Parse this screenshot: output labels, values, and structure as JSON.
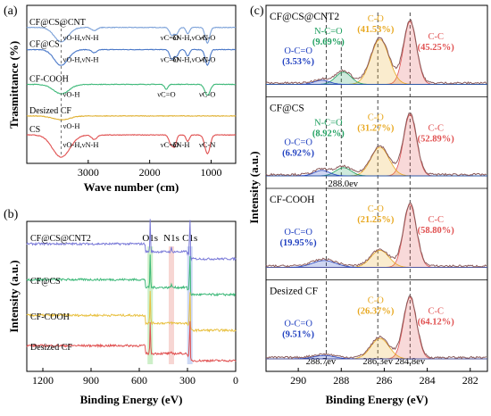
{
  "panels": {
    "a": {
      "letter": "(a)",
      "ylabel": "Trasmittance (%)",
      "xlabel": "Wave number (cm)"
    },
    "b": {
      "letter": "(b)",
      "ylabel": "Intensity (a.u.)",
      "xlabel": "Binding Energy (eV)"
    },
    "c": {
      "letter": "(c)",
      "ylabel": "Intensity (a.u.)",
      "xlabel": "Binding Energy (eV)"
    }
  },
  "chart_data": [
    {
      "id": "a",
      "type": "line",
      "title": "",
      "xlabel": "Wave number (cm)",
      "ylabel": "Trasmittance (%)",
      "xlim": [
        4000,
        600
      ],
      "x_reversed": true,
      "xticks": [
        3000,
        2000,
        1000
      ],
      "yticks": "none",
      "series": [
        {
          "name": "CF@CS@CNT",
          "color": "#7aa0d8",
          "baseline": 4.3,
          "dips": [
            [
              3440,
              0.45,
              160
            ],
            [
              2900,
              0.1,
              60
            ],
            [
              1640,
              0.25,
              50
            ],
            [
              1560,
              0.2,
              40
            ],
            [
              1380,
              0.2,
              40
            ],
            [
              1060,
              0.5,
              50
            ]
          ]
        },
        {
          "name": "CF@CS",
          "color": "#4a78c8",
          "baseline": 3.6,
          "dips": [
            [
              3440,
              0.5,
              160
            ],
            [
              2900,
              0.1,
              60
            ],
            [
              1640,
              0.3,
              50
            ],
            [
              1560,
              0.2,
              40
            ],
            [
              1380,
              0.2,
              40
            ],
            [
              1060,
              0.5,
              50
            ]
          ]
        },
        {
          "name": "CF-COOH",
          "color": "#3cb878",
          "baseline": 2.5,
          "dips": [
            [
              3440,
              0.3,
              180
            ],
            [
              1730,
              0.15,
              40
            ],
            [
              1060,
              0.35,
              60
            ]
          ]
        },
        {
          "name": "Desized CF",
          "color": "#e0b030",
          "baseline": 1.5,
          "dips": [
            [
              3440,
              0.12,
              200
            ]
          ]
        },
        {
          "name": "CS",
          "color": "#e05050",
          "baseline": 0.9,
          "dips": [
            [
              3440,
              0.7,
              200
            ],
            [
              2900,
              0.15,
              60
            ],
            [
              1650,
              0.3,
              50
            ],
            [
              1590,
              0.3,
              40
            ],
            [
              1380,
              0.2,
              40
            ],
            [
              1060,
              0.6,
              60
            ]
          ]
        }
      ],
      "dashed_line_x": 3440,
      "annotations": [
        {
          "row": 0,
          "items": [
            "νO-H,νN-H",
            "νC=O",
            "δN-H,νC-N",
            "νC-O"
          ]
        },
        {
          "row": 1,
          "items": [
            "νO-H,νN-H",
            "νC=O",
            "δN-H,νC-N",
            "νC-O"
          ]
        },
        {
          "row": 2,
          "items": [
            "νO-H",
            "νC=O",
            "νC-O"
          ]
        },
        {
          "row": 3,
          "items": [
            "νO-H"
          ]
        },
        {
          "row": 4,
          "items": [
            "νO-H,νN-H",
            "νC=O",
            "δN-H",
            "νC-N"
          ]
        }
      ]
    },
    {
      "id": "b",
      "type": "line",
      "title": "",
      "xlabel": "Binding Energy (eV)",
      "ylabel": "Intensity (a.u.)",
      "xlim": [
        1300,
        0
      ],
      "x_reversed": true,
      "xticks": [
        1200,
        900,
        600,
        300,
        0
      ],
      "yticks": "none",
      "series": [
        {
          "name": "CF@CS@CNT2",
          "color": "#7a7ad8",
          "baseline": 3.3
        },
        {
          "name": "CF@CS",
          "color": "#3cb878",
          "baseline": 2.3
        },
        {
          "name": "CF-COOH",
          "color": "#e8c040",
          "baseline": 1.3
        },
        {
          "name": "Desized CF",
          "color": "#e05050",
          "baseline": 0.45
        }
      ],
      "peaks": [
        {
          "label": "O1s",
          "x": 532,
          "band_color": "#b8e8b0"
        },
        {
          "label": "N1s",
          "x": 400,
          "band_color": "#f4c4c0"
        },
        {
          "label": "C1s",
          "x": 285,
          "band_color": "#b8c8f0"
        }
      ]
    },
    {
      "id": "c",
      "type": "line",
      "title": "",
      "xlabel": "Binding Energy (eV)",
      "ylabel": "Intensity (a.u.)",
      "xlim": [
        291.5,
        281.2
      ],
      "x_reversed": true,
      "xticks": [
        290,
        288,
        286,
        284,
        282
      ],
      "yticks": "none",
      "dashed_lines": [
        288.7,
        286.3,
        284.8
      ],
      "dashed_labels": [
        "288.7ev",
        "286.3ev",
        "284.8ev"
      ],
      "extra_label": {
        "text": "288.0ev",
        "x": 288.0,
        "panel": 1
      },
      "samples": [
        {
          "name": "CF@CS@CNT2",
          "components": [
            {
              "label": "C-C",
              "percent": "(45.25%)",
              "center": 284.8,
              "height": 0.92,
              "width": 0.5,
              "color": "#e05050"
            },
            {
              "label": "C-O",
              "percent": "(41.53%)",
              "center": 286.2,
              "height": 0.66,
              "width": 0.7,
              "color": "#e8a820"
            },
            {
              "label": "N-C=O",
              "percent": "(9.69%)",
              "center": 287.9,
              "height": 0.18,
              "width": 0.6,
              "color": "#20a060"
            },
            {
              "label": "O-C=O",
              "percent": "(3.53%)",
              "center": 288.9,
              "height": 0.06,
              "width": 0.6,
              "color": "#2040c0"
            }
          ]
        },
        {
          "name": "CF@CS",
          "components": [
            {
              "label": "C-C",
              "percent": "(52.89%)",
              "center": 284.8,
              "height": 0.9,
              "width": 0.5,
              "color": "#e05050"
            },
            {
              "label": "C-O",
              "percent": "(31.27%)",
              "center": 286.2,
              "height": 0.42,
              "width": 0.7,
              "color": "#e8a820"
            },
            {
              "label": "N-C=O",
              "percent": "(8.92%)",
              "center": 287.9,
              "height": 0.12,
              "width": 0.6,
              "color": "#20a060"
            },
            {
              "label": "O-C=O",
              "percent": "(6.92%)",
              "center": 288.9,
              "height": 0.08,
              "width": 0.6,
              "color": "#2040c0"
            }
          ]
        },
        {
          "name": "CF-COOH",
          "components": [
            {
              "label": "C-C",
              "percent": "(58.80%)",
              "center": 284.8,
              "height": 0.92,
              "width": 0.5,
              "color": "#e05050"
            },
            {
              "label": "C-O",
              "percent": "(21.25%)",
              "center": 286.2,
              "height": 0.25,
              "width": 0.7,
              "color": "#e8a820"
            },
            {
              "label": "O-C=O",
              "percent": "(19.95%)",
              "center": 288.8,
              "height": 0.1,
              "width": 0.9,
              "color": "#2040c0"
            }
          ]
        },
        {
          "name": "Desized CF",
          "components": [
            {
              "label": "C-C",
              "percent": "(64.12%)",
              "center": 284.8,
              "height": 0.9,
              "width": 0.5,
              "color": "#e05050"
            },
            {
              "label": "C-O",
              "percent": "(26.37%)",
              "center": 286.2,
              "height": 0.3,
              "width": 0.7,
              "color": "#e8a820"
            },
            {
              "label": "O-C=O",
              "percent": "(9.51%)",
              "center": 288.8,
              "height": 0.05,
              "width": 0.8,
              "color": "#2040c0"
            }
          ]
        }
      ]
    }
  ]
}
